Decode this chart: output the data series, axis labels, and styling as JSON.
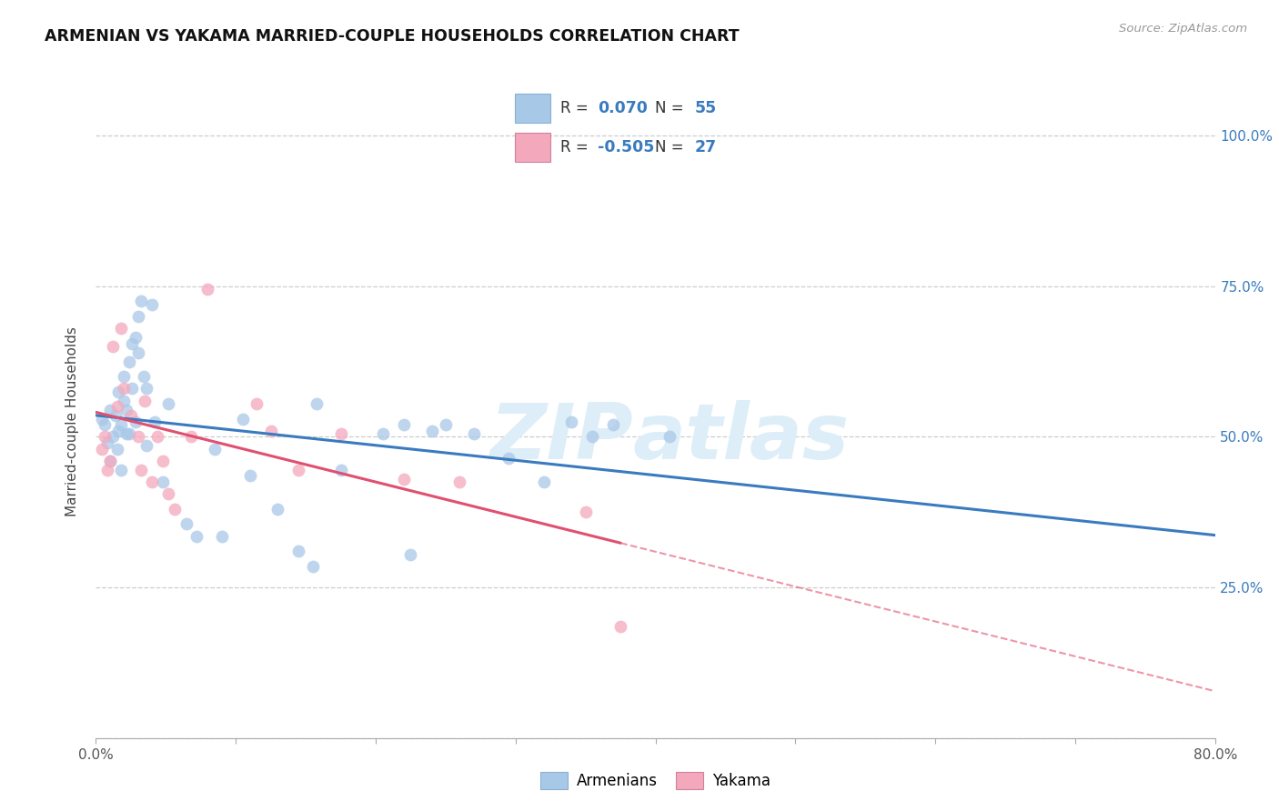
{
  "title": "ARMENIAN VS YAKAMA MARRIED-COUPLE HOUSEHOLDS CORRELATION CHART",
  "source": "Source: ZipAtlas.com",
  "ylabel": "Married-couple Households",
  "xlim": [
    0.0,
    0.8
  ],
  "ylim": [
    0.0,
    1.05
  ],
  "ytick_positions": [
    0.0,
    0.25,
    0.5,
    0.75,
    1.0
  ],
  "xtick_positions": [
    0.0,
    0.1,
    0.2,
    0.3,
    0.4,
    0.5,
    0.6,
    0.7,
    0.8
  ],
  "blue_scatter": "#a8c8e8",
  "pink_scatter": "#f4a8bc",
  "line_blue": "#3a7bbf",
  "line_pink": "#e05070",
  "watermark_color": "#ddeef8",
  "background": "#ffffff",
  "grid_color": "#c8c8c8",
  "armenians_x": [
    0.004,
    0.006,
    0.008,
    0.01,
    0.01,
    0.012,
    0.014,
    0.015,
    0.016,
    0.016,
    0.018,
    0.018,
    0.02,
    0.02,
    0.022,
    0.022,
    0.024,
    0.024,
    0.026,
    0.026,
    0.028,
    0.028,
    0.03,
    0.03,
    0.032,
    0.034,
    0.036,
    0.036,
    0.04,
    0.042,
    0.048,
    0.052,
    0.065,
    0.072,
    0.085,
    0.09,
    0.105,
    0.11,
    0.13,
    0.145,
    0.155,
    0.158,
    0.175,
    0.205,
    0.22,
    0.225,
    0.24,
    0.25,
    0.27,
    0.295,
    0.32,
    0.34,
    0.355,
    0.37,
    0.41
  ],
  "armenians_y": [
    0.53,
    0.52,
    0.49,
    0.46,
    0.545,
    0.5,
    0.535,
    0.48,
    0.51,
    0.575,
    0.445,
    0.52,
    0.56,
    0.6,
    0.505,
    0.545,
    0.505,
    0.625,
    0.58,
    0.655,
    0.525,
    0.665,
    0.7,
    0.64,
    0.725,
    0.6,
    0.485,
    0.58,
    0.72,
    0.525,
    0.425,
    0.555,
    0.355,
    0.335,
    0.48,
    0.335,
    0.53,
    0.435,
    0.38,
    0.31,
    0.285,
    0.555,
    0.445,
    0.505,
    0.52,
    0.305,
    0.51,
    0.52,
    0.505,
    0.465,
    0.425,
    0.525,
    0.5,
    0.52,
    0.5
  ],
  "yakama_x": [
    0.004,
    0.006,
    0.008,
    0.01,
    0.012,
    0.015,
    0.018,
    0.02,
    0.025,
    0.03,
    0.032,
    0.035,
    0.04,
    0.044,
    0.048,
    0.052,
    0.056,
    0.068,
    0.08,
    0.115,
    0.125,
    0.145,
    0.175,
    0.22,
    0.26,
    0.35,
    0.375
  ],
  "yakama_y": [
    0.48,
    0.5,
    0.445,
    0.46,
    0.65,
    0.55,
    0.68,
    0.58,
    0.535,
    0.5,
    0.445,
    0.56,
    0.425,
    0.5,
    0.46,
    0.405,
    0.38,
    0.5,
    0.745,
    0.555,
    0.51,
    0.445,
    0.505,
    0.43,
    0.425,
    0.375,
    0.185
  ]
}
